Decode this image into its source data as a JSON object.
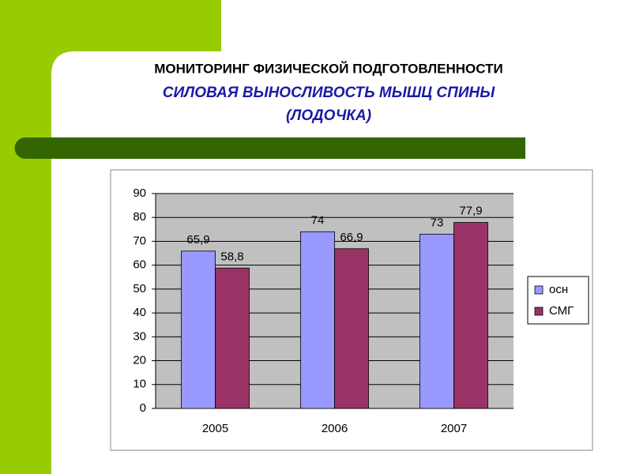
{
  "chart_data": {
    "type": "bar",
    "title": "МОНИТОРИНГ ФИЗИЧЕСКОЙ ПОДГОТОВЛЕННОСТИ",
    "subtitle": [
      "СИЛОВАЯ ВЫНОСЛИВОСТЬ МЫШЦ СПИНЫ",
      "(ЛОДОЧКА)"
    ],
    "categories": [
      "2005",
      "2006",
      "2007"
    ],
    "series": [
      {
        "name": "осн",
        "color": "#9999ff",
        "values": [
          65.9,
          74,
          73
        ],
        "value_labels": [
          "65,9",
          "74",
          "73"
        ]
      },
      {
        "name": "СМГ",
        "color": "#993366",
        "values": [
          58.8,
          66.9,
          77.9
        ],
        "value_labels": [
          "58,8",
          "66,9",
          "77,9"
        ]
      }
    ],
    "ylim": [
      0,
      90
    ],
    "yticks": [
      0,
      10,
      20,
      30,
      40,
      50,
      60,
      70,
      80,
      90
    ],
    "grid": true,
    "legend": "right"
  }
}
